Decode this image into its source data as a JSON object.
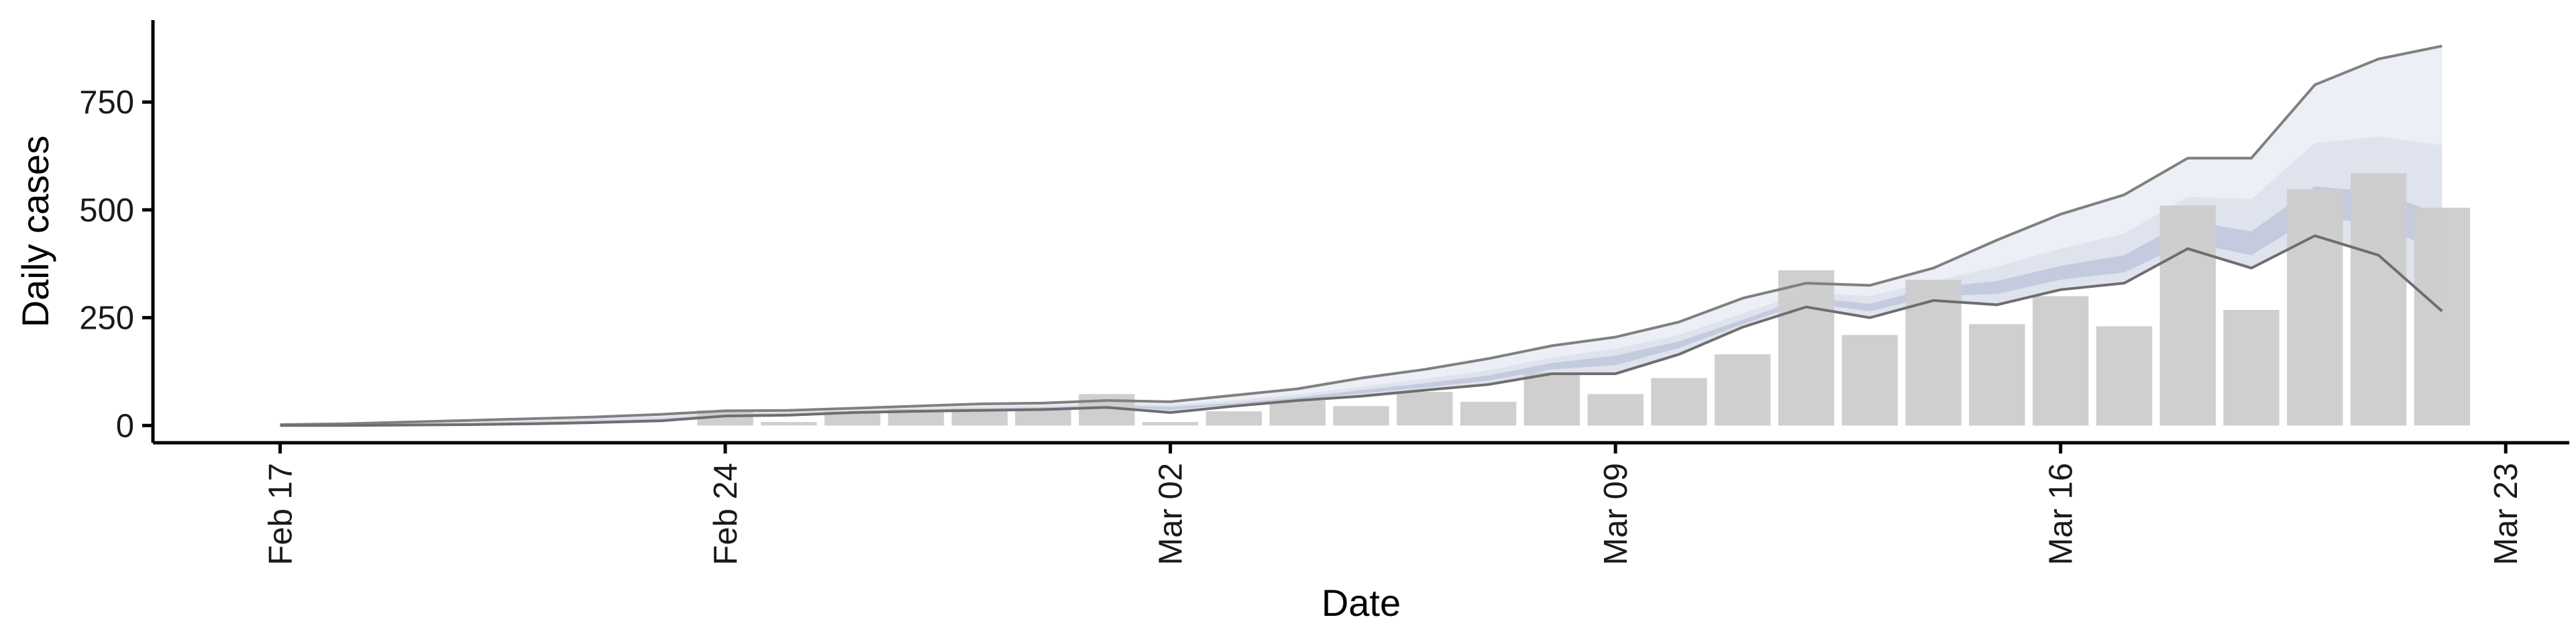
{
  "chart_data": {
    "type": "bar",
    "title": "",
    "xlabel": "Date",
    "ylabel": "Daily cases",
    "xlim": [
      "2020-02-15",
      "2020-03-24"
    ],
    "ylim": [
      -40,
      940
    ],
    "x_ticks": [
      {
        "date": "2020-02-17",
        "label": "Feb 17"
      },
      {
        "date": "2020-02-24",
        "label": "Feb 24"
      },
      {
        "date": "2020-03-02",
        "label": "Mar 02"
      },
      {
        "date": "2020-03-09",
        "label": "Mar 09"
      },
      {
        "date": "2020-03-16",
        "label": "Mar 16"
      },
      {
        "date": "2020-03-23",
        "label": "Mar 23"
      }
    ],
    "y_ticks": [
      0,
      250,
      500,
      750
    ],
    "grid": false,
    "legend": "none",
    "colors": {
      "bars": "#cccccc",
      "outer_band": "#e9ecf3",
      "mid_band": "#d5d9e7",
      "inner_band": "#b7bfd6",
      "bounds": "#808080"
    },
    "observed_cases": [
      {
        "date": "2020-02-17",
        "value": 0
      },
      {
        "date": "2020-02-24",
        "value": 35
      },
      {
        "date": "2020-02-25",
        "value": 8
      },
      {
        "date": "2020-02-26",
        "value": 33
      },
      {
        "date": "2020-02-27",
        "value": 38
      },
      {
        "date": "2020-02-28",
        "value": 40
      },
      {
        "date": "2020-02-29",
        "value": 42
      },
      {
        "date": "2020-03-01",
        "value": 73
      },
      {
        "date": "2020-03-02",
        "value": 8
      },
      {
        "date": "2020-03-03",
        "value": 33
      },
      {
        "date": "2020-03-04",
        "value": 58
      },
      {
        "date": "2020-03-05",
        "value": 45
      },
      {
        "date": "2020-03-06",
        "value": 78
      },
      {
        "date": "2020-03-07",
        "value": 55
      },
      {
        "date": "2020-03-08",
        "value": 123
      },
      {
        "date": "2020-03-09",
        "value": 73
      },
      {
        "date": "2020-03-10",
        "value": 110
      },
      {
        "date": "2020-03-11",
        "value": 165
      },
      {
        "date": "2020-03-12",
        "value": 360
      },
      {
        "date": "2020-03-13",
        "value": 210
      },
      {
        "date": "2020-03-14",
        "value": 338
      },
      {
        "date": "2020-03-15",
        "value": 235
      },
      {
        "date": "2020-03-16",
        "value": 300
      },
      {
        "date": "2020-03-17",
        "value": 230
      },
      {
        "date": "2020-03-18",
        "value": 510
      },
      {
        "date": "2020-03-19",
        "value": 268
      },
      {
        "date": "2020-03-20",
        "value": 548
      },
      {
        "date": "2020-03-21",
        "value": 585
      },
      {
        "date": "2020-03-22",
        "value": 505
      }
    ],
    "band_dates": [
      "2020-02-17",
      "2020-02-18",
      "2020-02-19",
      "2020-02-20",
      "2020-02-21",
      "2020-02-22",
      "2020-02-23",
      "2020-02-24",
      "2020-02-25",
      "2020-02-26",
      "2020-02-27",
      "2020-02-28",
      "2020-02-29",
      "2020-03-01",
      "2020-03-02",
      "2020-03-03",
      "2020-03-04",
      "2020-03-05",
      "2020-03-06",
      "2020-03-07",
      "2020-03-08",
      "2020-03-09",
      "2020-03-10",
      "2020-03-11",
      "2020-03-12",
      "2020-03-13",
      "2020-03-14",
      "2020-03-15",
      "2020-03-16",
      "2020-03-17",
      "2020-03-18",
      "2020-03-19",
      "2020-03-20",
      "2020-03-21",
      "2020-03-22"
    ],
    "outer_band": {
      "upper": [
        2,
        4,
        8,
        12,
        16,
        20,
        26,
        34,
        35,
        40,
        45,
        50,
        52,
        58,
        55,
        70,
        85,
        110,
        130,
        155,
        185,
        205,
        240,
        295,
        330,
        325,
        365,
        430,
        490,
        535,
        620,
        620,
        790,
        850,
        880
      ],
      "lower": [
        0,
        0,
        1,
        2,
        4,
        7,
        11,
        22,
        24,
        30,
        33,
        35,
        37,
        42,
        30,
        45,
        58,
        68,
        82,
        95,
        120,
        120,
        165,
        228,
        275,
        250,
        290,
        280,
        315,
        330,
        410,
        365,
        440,
        395,
        265
      ]
    },
    "mid_band": {
      "upper": [
        1,
        3,
        6,
        9,
        12,
        16,
        21,
        30,
        31,
        36,
        40,
        44,
        46,
        52,
        48,
        58,
        72,
        90,
        108,
        128,
        158,
        178,
        210,
        260,
        308,
        300,
        335,
        368,
        410,
        445,
        530,
        525,
        655,
        670,
        650
      ]
    },
    "inner_band": {
      "upper": [
        1,
        2,
        4,
        6,
        9,
        12,
        16,
        27,
        28,
        33,
        37,
        40,
        42,
        47,
        43,
        52,
        65,
        82,
        98,
        116,
        145,
        162,
        195,
        245,
        298,
        282,
        320,
        335,
        370,
        395,
        475,
        450,
        555,
        540,
        490
      ],
      "lower": [
        0,
        1,
        2,
        4,
        6,
        9,
        13,
        24,
        26,
        31,
        34,
        37,
        39,
        44,
        36,
        49,
        60,
        74,
        88,
        104,
        130,
        140,
        180,
        235,
        285,
        265,
        300,
        305,
        338,
        355,
        425,
        395,
        485,
        465,
        400
      ]
    }
  }
}
